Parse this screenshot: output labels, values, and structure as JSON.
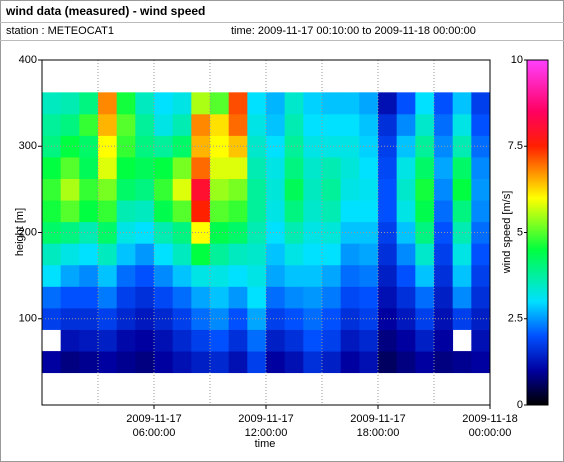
{
  "header": {
    "title": "wind data (measured) - wind speed",
    "station": "station : METEOCAT1",
    "time": "time: 2009-11-17 00:10:00 to 2009-11-18 00:00:00"
  },
  "chart_data": {
    "type": "heatmap",
    "xlabel": "time",
    "ylabel": "height [m]",
    "colorbar_label": "wind speed [m/s]",
    "xlim": [
      0,
      24
    ],
    "ylim": [
      0,
      400
    ],
    "xticks": [
      {
        "value": 6,
        "date": "2009-11-17",
        "time": "06:00:00"
      },
      {
        "value": 12,
        "date": "2009-11-17",
        "time": "12:00:00"
      },
      {
        "value": 18,
        "date": "2009-11-17",
        "time": "18:00:00"
      },
      {
        "value": 24,
        "date": "2009-11-18",
        "time": "00:00:00"
      }
    ],
    "xgrid": [
      3,
      6,
      9,
      12,
      15,
      18,
      21
    ],
    "yticks": [
      100,
      200,
      300,
      400
    ],
    "ygrid": [
      100,
      200,
      300
    ],
    "clim": [
      0,
      10
    ],
    "cticks": [
      0,
      2.5,
      5,
      7.5,
      10
    ],
    "colorscale": [
      [
        0,
        "#000000"
      ],
      [
        1,
        "#0000a0"
      ],
      [
        2,
        "#0050ff"
      ],
      [
        3,
        "#00e0ff"
      ],
      [
        4.5,
        "#00ff40"
      ],
      [
        6,
        "#ffff00"
      ],
      [
        7.5,
        "#ff2000"
      ],
      [
        8.5,
        "#ff0060"
      ],
      [
        10,
        "#ff40ff"
      ]
    ],
    "xbins": [
      0,
      1,
      2,
      3,
      4,
      5,
      6,
      7,
      8,
      9,
      10,
      11,
      12,
      13,
      14,
      15,
      16,
      17,
      18,
      19,
      20,
      21,
      22,
      23,
      24
    ],
    "ybins": [
      37.5,
      62.5,
      87.5,
      112.5,
      137.5,
      162.5,
      187.5,
      212.5,
      237.5,
      262.5,
      287.5,
      312.5,
      337.5,
      362.5
    ],
    "values": [
      [
        1.0,
        null,
        1.8,
        2.2,
        3.0,
        3.5,
        4.2,
        4.6,
        4.8,
        4.5,
        4.0,
        3.8,
        3.5
      ],
      [
        0.8,
        1.2,
        1.6,
        2.0,
        2.6,
        3.2,
        4.0,
        5.0,
        5.5,
        5.0,
        4.5,
        4.0,
        3.6
      ],
      [
        0.9,
        1.3,
        1.6,
        2.0,
        2.4,
        3.0,
        3.6,
        4.5,
        4.8,
        4.3,
        4.2,
        4.8,
        4.0
      ],
      [
        1.0,
        1.4,
        1.8,
        2.3,
        2.8,
        3.5,
        4.2,
        4.8,
        5.2,
        5.8,
        6.0,
        6.5,
        6.8
      ],
      [
        0.9,
        1.1,
        1.5,
        1.8,
        2.2,
        2.8,
        3.2,
        3.6,
        4.2,
        4.5,
        4.8,
        5.0,
        4.6
      ],
      [
        0.8,
        1.0,
        1.3,
        1.6,
        2.0,
        2.5,
        3.0,
        3.5,
        4.0,
        4.3,
        4.0,
        3.8,
        3.5
      ],
      [
        1.0,
        1.2,
        1.5,
        1.9,
        2.4,
        3.0,
        3.6,
        4.4,
        4.8,
        4.5,
        3.8,
        3.2,
        3.0
      ],
      [
        1.2,
        1.5,
        1.8,
        2.2,
        2.8,
        3.5,
        4.0,
        5.0,
        5.8,
        5.2,
        4.2,
        3.6,
        3.2
      ],
      [
        1.4,
        1.8,
        2.2,
        2.6,
        3.2,
        4.5,
        6.0,
        7.5,
        8.0,
        7.0,
        6.5,
        6.8,
        5.5
      ],
      [
        1.5,
        2.0,
        2.4,
        2.8,
        3.2,
        3.8,
        4.4,
        5.0,
        5.4,
        5.8,
        6.0,
        6.2,
        5.0
      ],
      [
        1.2,
        1.6,
        2.0,
        2.5,
        3.0,
        3.5,
        4.2,
        4.8,
        5.2,
        5.8,
        6.4,
        7.0,
        7.2
      ],
      [
        1.8,
        2.2,
        2.6,
        3.0,
        3.2,
        3.4,
        3.6,
        3.8,
        3.8,
        3.6,
        3.4,
        3.2,
        3.0
      ],
      [
        1.0,
        1.4,
        1.8,
        2.2,
        2.6,
        2.8,
        3.0,
        3.2,
        3.3,
        3.2,
        3.0,
        2.8,
        2.7
      ],
      [
        1.2,
        1.6,
        2.0,
        2.4,
        2.8,
        3.2,
        3.6,
        4.0,
        4.3,
        4.0,
        3.8,
        3.6,
        3.4
      ],
      [
        1.6,
        2.0,
        2.2,
        2.5,
        2.8,
        3.0,
        3.2,
        3.4,
        3.5,
        3.4,
        3.2,
        3.0,
        2.9
      ],
      [
        1.4,
        1.8,
        2.0,
        2.3,
        2.6,
        3.0,
        3.3,
        3.6,
        3.8,
        3.6,
        3.2,
        3.0,
        2.8
      ],
      [
        1.0,
        1.3,
        1.6,
        1.9,
        2.2,
        2.5,
        2.8,
        3.0,
        3.2,
        3.3,
        3.2,
        3.0,
        2.8
      ],
      [
        1.2,
        1.5,
        1.8,
        2.0,
        2.3,
        2.6,
        2.8,
        3.0,
        3.1,
        3.0,
        2.9,
        2.8,
        2.6
      ],
      [
        0.6,
        0.8,
        1.0,
        1.2,
        1.4,
        1.6,
        1.8,
        2.0,
        2.0,
        1.9,
        1.8,
        1.6,
        1.2
      ],
      [
        0.8,
        1.0,
        1.3,
        1.6,
        2.0,
        2.4,
        2.8,
        3.2,
        3.4,
        3.2,
        2.8,
        2.4,
        2.0
      ],
      [
        1.0,
        1.4,
        1.8,
        2.2,
        2.8,
        3.4,
        4.0,
        4.4,
        4.6,
        4.2,
        3.8,
        3.4,
        3.0
      ],
      [
        0.8,
        1.0,
        1.2,
        1.4,
        1.6,
        1.8,
        2.0,
        2.2,
        2.4,
        2.6,
        2.4,
        2.2,
        2.0
      ],
      [
        0.9,
        null,
        1.8,
        2.4,
        2.8,
        3.2,
        3.6,
        4.0,
        4.5,
        4.2,
        3.6,
        3.2,
        2.8
      ],
      [
        1.0,
        1.2,
        1.4,
        1.6,
        1.8,
        2.0,
        2.2,
        2.4,
        2.5,
        2.4,
        2.2,
        2.0,
        1.8
      ]
    ]
  }
}
